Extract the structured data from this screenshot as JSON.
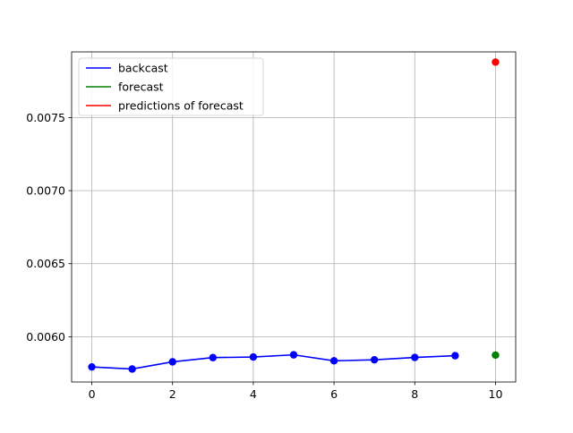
{
  "chart_data": {
    "type": "line",
    "title": "",
    "xlabel": "",
    "ylabel": "",
    "xlim": [
      -0.5,
      10.5
    ],
    "ylim": [
      0.00569,
      0.00795
    ],
    "grid": true,
    "legend_position": "top-left",
    "x_ticks": [
      0,
      2,
      4,
      6,
      8,
      10
    ],
    "x_tick_labels": [
      "0",
      "2",
      "4",
      "6",
      "8",
      "10"
    ],
    "y_ticks": [
      0.006,
      0.0065,
      0.007,
      0.0075
    ],
    "y_tick_labels": [
      "0.0060",
      "0.0065",
      "0.0070",
      "0.0075"
    ],
    "series": [
      {
        "name": "backcast",
        "color": "#0000ff",
        "style": "line+markers",
        "x": [
          0,
          1,
          2,
          3,
          4,
          5,
          6,
          7,
          8,
          9
        ],
        "values": [
          0.005793,
          0.005779,
          0.005828,
          0.005857,
          0.005861,
          0.005876,
          0.005835,
          0.005842,
          0.005858,
          0.00587
        ]
      },
      {
        "name": "forecast",
        "color": "#008000",
        "style": "markers",
        "x": [
          10
        ],
        "values": [
          0.005874
        ]
      },
      {
        "name": "predictions of forecast",
        "color": "#ff0000",
        "style": "markers",
        "x": [
          10
        ],
        "values": [
          0.00788
        ]
      }
    ]
  }
}
